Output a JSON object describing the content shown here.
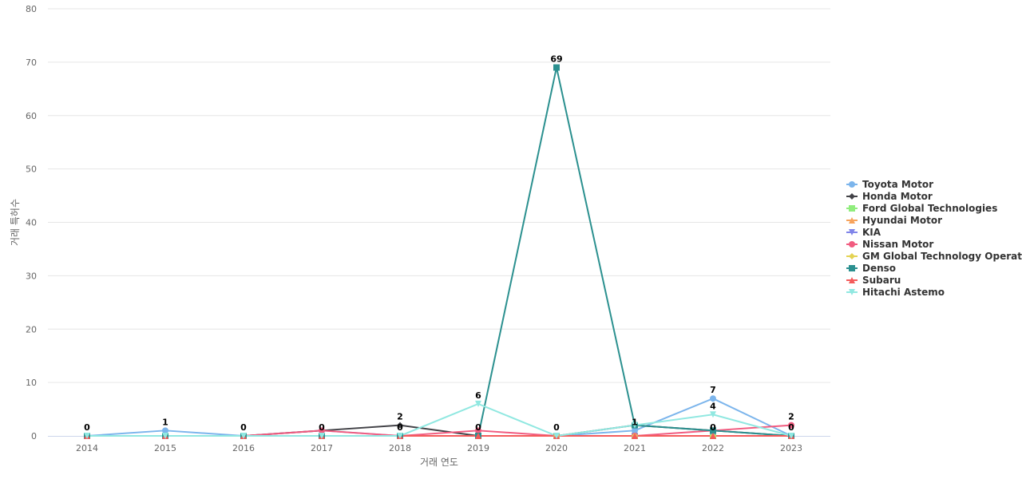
{
  "chart_data": {
    "type": "line",
    "title": "",
    "xlabel": "거래 연도",
    "ylabel": "거래 특허수",
    "ylim": [
      0,
      80
    ],
    "y_ticks": [
      0,
      10,
      20,
      30,
      40,
      50,
      60,
      70,
      80
    ],
    "grid": true,
    "legend_position": "right",
    "categories": [
      "2014",
      "2015",
      "2016",
      "2017",
      "2018",
      "2019",
      "2020",
      "2021",
      "2022",
      "2023"
    ],
    "series": [
      {
        "name": "Toyota Motor",
        "color": "#7cb5ec",
        "marker": "circle",
        "values": [
          0,
          1,
          0,
          1,
          0,
          0,
          0,
          1,
          7,
          0
        ]
      },
      {
        "name": "Honda Motor",
        "color": "#434348",
        "marker": "diamond",
        "values": [
          0,
          0,
          0,
          1,
          2,
          0,
          0,
          2,
          1,
          0
        ]
      },
      {
        "name": "Ford Global Technologies",
        "color": "#90ed7d",
        "marker": "square",
        "values": [
          0,
          0,
          0,
          0,
          0,
          0,
          0,
          0,
          0,
          0
        ]
      },
      {
        "name": "Hyundai Motor",
        "color": "#f7a35c",
        "marker": "triangle",
        "values": [
          0,
          0,
          0,
          0,
          0,
          0,
          0,
          0,
          0,
          0
        ]
      },
      {
        "name": "KIA",
        "color": "#8085e9",
        "marker": "triangle-down",
        "values": [
          0,
          0,
          0,
          0,
          0,
          0,
          0,
          0,
          0,
          0
        ]
      },
      {
        "name": "Nissan Motor",
        "color": "#f15c80",
        "marker": "circle",
        "values": [
          0,
          0,
          0,
          1,
          0,
          1,
          0,
          0,
          1,
          2
        ]
      },
      {
        "name": "GM Global Technology Operat...",
        "color": "#e4d354",
        "marker": "diamond",
        "values": [
          0,
          0,
          0,
          0,
          0,
          0,
          0,
          0,
          0,
          0
        ]
      },
      {
        "name": "Denso",
        "color": "#2b908f",
        "marker": "square",
        "values": [
          0,
          0,
          0,
          0,
          0,
          0,
          69,
          2,
          1,
          0
        ]
      },
      {
        "name": "Subaru",
        "color": "#f45b5b",
        "marker": "triangle",
        "values": [
          0,
          0,
          0,
          0,
          0,
          0,
          0,
          0,
          0,
          0
        ]
      },
      {
        "name": "Hitachi Astemo",
        "color": "#91e8e1",
        "marker": "triangle-down",
        "values": [
          0,
          0,
          0,
          0,
          0,
          6,
          0,
          2,
          4,
          0
        ]
      }
    ],
    "data_labels": [
      {
        "category": "2014",
        "text": "0",
        "value": 0
      },
      {
        "category": "2015",
        "text": "1",
        "value": 1
      },
      {
        "category": "2016",
        "text": "0",
        "value": 0
      },
      {
        "category": "2017",
        "text": "0",
        "value": 0
      },
      {
        "category": "2018",
        "text": "2",
        "value": 2
      },
      {
        "category": "2018",
        "text": "0",
        "value": 0
      },
      {
        "category": "2019",
        "text": "6",
        "value": 6
      },
      {
        "category": "2019",
        "text": "0",
        "value": 0
      },
      {
        "category": "2020",
        "text": "69",
        "value": 69
      },
      {
        "category": "2020",
        "text": "0",
        "value": 0
      },
      {
        "category": "2021",
        "text": "1",
        "value": 1
      },
      {
        "category": "2022",
        "text": "7",
        "value": 7
      },
      {
        "category": "2022",
        "text": "4",
        "value": 4
      },
      {
        "category": "2022",
        "text": "0",
        "value": 0
      },
      {
        "category": "2023",
        "text": "2",
        "value": 2
      },
      {
        "category": "2023",
        "text": "0",
        "value": 0
      }
    ]
  }
}
